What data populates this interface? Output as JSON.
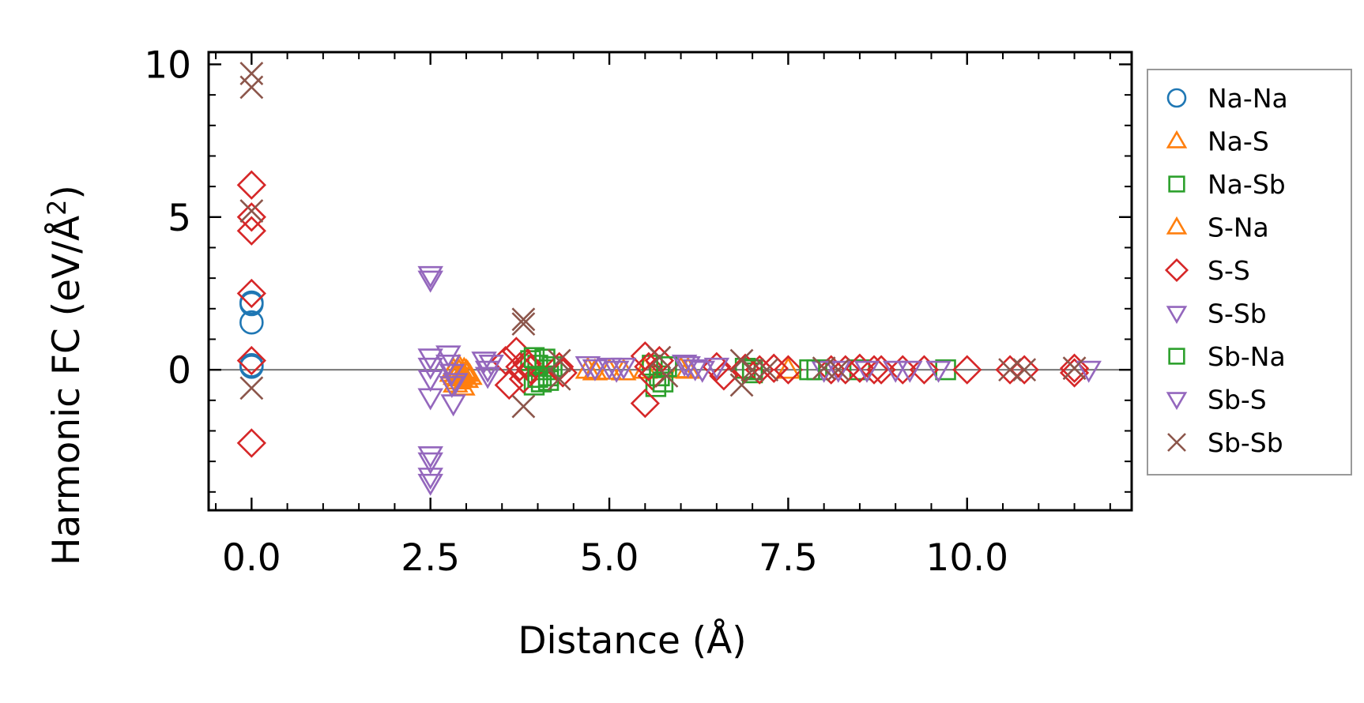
{
  "chart_data": {
    "type": "scatter",
    "title": "",
    "xlabel": "Distance (Å)",
    "ylabel": "Harmonic FC (eV/Å",
    "ylabel_sup": "2",
    "ylabel_close": ")",
    "xlim": [
      -0.6,
      12.3
    ],
    "ylim": [
      -4.6,
      10.4
    ],
    "xticks": [
      0.0,
      2.5,
      5.0,
      7.5,
      10.0
    ],
    "xtick_labels": [
      "0.0",
      "2.5",
      "5.0",
      "7.5",
      "10.0"
    ],
    "yticks": [
      0,
      5,
      10
    ],
    "ytick_labels": [
      "0",
      "5",
      "10"
    ],
    "x_minor_step": 0.5,
    "y_minor_step": 1,
    "zero_line": true,
    "legend_position": "outside-right",
    "series": [
      {
        "name": "Na-Na",
        "marker": "circle",
        "color": "#1f77b4",
        "points": [
          [
            0,
            2.2
          ],
          [
            0,
            2.15
          ],
          [
            0,
            1.55
          ],
          [
            0,
            0.15
          ],
          [
            0,
            0.1
          ]
        ]
      },
      {
        "name": "Na-S",
        "marker": "triangle-up",
        "color": "#ff7f0e",
        "points": [
          [
            2.8,
            -0.1
          ],
          [
            2.82,
            0.0
          ],
          [
            2.85,
            -0.2
          ],
          [
            2.88,
            -0.35
          ],
          [
            2.9,
            -0.05
          ],
          [
            2.92,
            -0.25
          ],
          [
            2.95,
            -0.15
          ],
          [
            2.97,
            0.0
          ],
          [
            3.0,
            -0.3
          ],
          [
            3.02,
            -0.1
          ],
          [
            4.8,
            -0.05
          ],
          [
            5.0,
            -0.03
          ],
          [
            5.5,
            0.0
          ],
          [
            6.0,
            0.02
          ],
          [
            7.5,
            0.0
          ]
        ]
      },
      {
        "name": "Na-Sb",
        "marker": "square",
        "color": "#2ca02c",
        "points": [
          [
            3.9,
            0.3
          ],
          [
            3.95,
            -0.5
          ],
          [
            4.0,
            0.15
          ],
          [
            4.05,
            -0.4
          ],
          [
            4.1,
            0.0
          ],
          [
            4.15,
            -0.2
          ],
          [
            4.2,
            0.1
          ],
          [
            5.6,
            0.15
          ],
          [
            5.65,
            -0.55
          ],
          [
            5.7,
            -0.2
          ],
          [
            6.9,
            0.05
          ],
          [
            7.0,
            -0.1
          ],
          [
            7.9,
            0.0
          ],
          [
            8.5,
            0.0
          ],
          [
            9.7,
            0.0
          ]
        ]
      },
      {
        "name": "S-Na",
        "marker": "triangle-up",
        "color": "#ff7f0e",
        "points": [
          [
            2.85,
            -0.45
          ],
          [
            2.9,
            0.1
          ],
          [
            2.95,
            -0.55
          ],
          [
            3.0,
            -0.05
          ],
          [
            3.05,
            -0.2
          ],
          [
            4.7,
            0.0
          ],
          [
            5.2,
            -0.05
          ],
          [
            6.1,
            0.0
          ]
        ]
      },
      {
        "name": "S-S",
        "marker": "diamond",
        "color": "#d62728",
        "points": [
          [
            0,
            6.05
          ],
          [
            0,
            5.0
          ],
          [
            0,
            4.55
          ],
          [
            0,
            2.5
          ],
          [
            0,
            0.3
          ],
          [
            0,
            -2.4
          ],
          [
            3.55,
            0.3
          ],
          [
            3.6,
            -0.5
          ],
          [
            3.7,
            0.6
          ],
          [
            3.75,
            0.1
          ],
          [
            3.8,
            -0.3
          ],
          [
            3.85,
            0.2
          ],
          [
            3.9,
            0.0
          ],
          [
            4.3,
            0.1
          ],
          [
            4.35,
            -0.1
          ],
          [
            5.5,
            0.45
          ],
          [
            5.5,
            -1.1
          ],
          [
            5.55,
            0.1
          ],
          [
            5.6,
            -0.2
          ],
          [
            5.7,
            0.3
          ],
          [
            6.5,
            0.1
          ],
          [
            6.6,
            -0.2
          ],
          [
            6.9,
            0.05
          ],
          [
            7.1,
            0.0
          ],
          [
            7.3,
            0.05
          ],
          [
            7.5,
            0.0
          ],
          [
            8.1,
            0.0
          ],
          [
            8.3,
            0.0
          ],
          [
            8.5,
            0.05
          ],
          [
            8.7,
            0.0
          ],
          [
            8.8,
            0.0
          ],
          [
            9.1,
            0.0
          ],
          [
            9.4,
            0.0
          ],
          [
            10.0,
            0.0
          ],
          [
            10.6,
            0.0
          ],
          [
            10.8,
            0.0
          ],
          [
            11.5,
            -0.1
          ],
          [
            11.5,
            0.05
          ]
        ]
      },
      {
        "name": "S-Sb",
        "marker": "triangle-down",
        "color": "#9467bd",
        "points": [
          [
            2.5,
            3.1
          ],
          [
            2.5,
            2.95
          ],
          [
            2.5,
            0.4
          ],
          [
            2.5,
            0.1
          ],
          [
            2.5,
            -0.3
          ],
          [
            2.5,
            -0.9
          ],
          [
            2.5,
            -2.8
          ],
          [
            2.5,
            -3.0
          ],
          [
            2.5,
            -3.5
          ],
          [
            2.5,
            -3.7
          ],
          [
            2.75,
            0.5
          ],
          [
            2.8,
            -0.1
          ],
          [
            2.82,
            -1.1
          ],
          [
            2.85,
            -0.4
          ],
          [
            3.25,
            0.3
          ],
          [
            3.3,
            0.0
          ],
          [
            4.7,
            0.15
          ],
          [
            4.8,
            0.05
          ],
          [
            5.0,
            0.1
          ],
          [
            6.1,
            0.15
          ],
          [
            6.2,
            0.05
          ],
          [
            8.0,
            0.0
          ],
          [
            8.6,
            0.0
          ],
          [
            9.0,
            0.0
          ],
          [
            11.7,
            0.0
          ]
        ]
      },
      {
        "name": "Sb-Na",
        "marker": "square",
        "color": "#2ca02c",
        "points": [
          [
            3.95,
            0.4
          ],
          [
            4.0,
            -0.25
          ],
          [
            4.1,
            0.35
          ],
          [
            4.15,
            -0.35
          ],
          [
            5.75,
            -0.4
          ],
          [
            5.8,
            0.1
          ],
          [
            7.0,
            0.0
          ],
          [
            7.8,
            0.0
          ]
        ]
      },
      {
        "name": "Sb-S",
        "marker": "triangle-down",
        "color": "#9467bd",
        "points": [
          [
            2.75,
            0.2
          ],
          [
            2.8,
            -0.5
          ],
          [
            3.3,
            -0.2
          ],
          [
            3.35,
            0.2
          ],
          [
            5.1,
            0.0
          ],
          [
            5.2,
            0.1
          ],
          [
            6.05,
            0.2
          ],
          [
            6.3,
            0.0
          ],
          [
            6.5,
            0.1
          ],
          [
            8.2,
            0.0
          ],
          [
            9.2,
            0.0
          ],
          [
            9.6,
            0.0
          ]
        ]
      },
      {
        "name": "Sb-Sb",
        "marker": "x",
        "color": "#8c564b",
        "points": [
          [
            0,
            9.7
          ],
          [
            0,
            9.25
          ],
          [
            0,
            5.2
          ],
          [
            0,
            -0.6
          ],
          [
            3.8,
            1.65
          ],
          [
            3.8,
            1.5
          ],
          [
            3.8,
            -1.2
          ],
          [
            4.3,
            0.3
          ],
          [
            4.3,
            -0.3
          ],
          [
            5.7,
            0.4
          ],
          [
            5.8,
            -0.2
          ],
          [
            6.85,
            0.3
          ],
          [
            6.85,
            -0.5
          ],
          [
            7.0,
            0.0
          ],
          [
            7.2,
            0.0
          ],
          [
            8.0,
            0.05
          ],
          [
            8.2,
            0.0
          ],
          [
            10.6,
            0.0
          ],
          [
            10.8,
            0.0
          ],
          [
            11.5,
            0.05
          ]
        ]
      }
    ]
  }
}
